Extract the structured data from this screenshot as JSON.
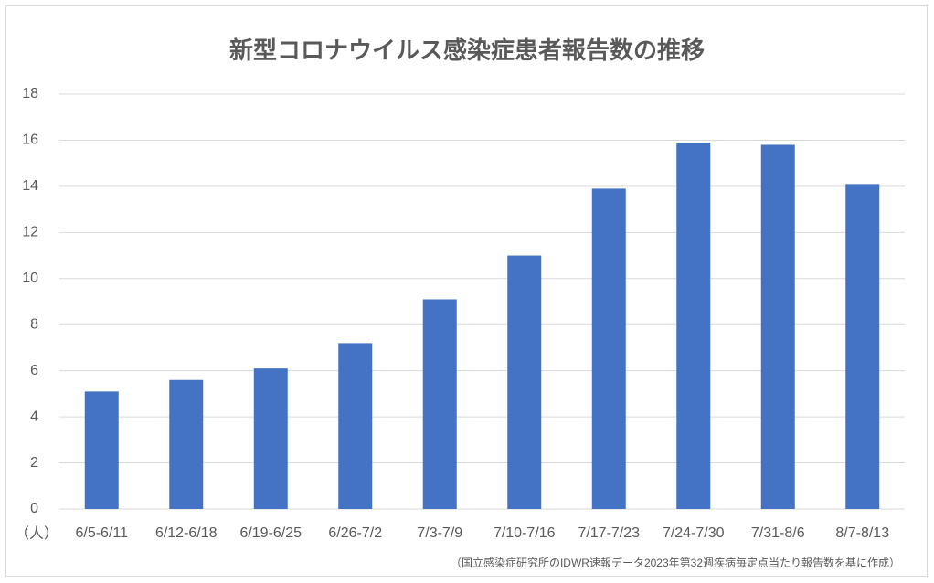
{
  "chart_data": {
    "type": "bar",
    "title": "新型コロナウイルス感染症患者報告数の推移",
    "categories": [
      "6/5-6/11",
      "6/12-6/18",
      "6/19-6/25",
      "6/26-7/2",
      "7/3-7/9",
      "7/10-7/16",
      "7/17-7/23",
      "7/24-7/30",
      "7/31-8/6",
      "8/7-8/13"
    ],
    "values": [
      5.1,
      5.6,
      6.1,
      7.2,
      9.1,
      11.0,
      13.9,
      15.9,
      15.8,
      14.1
    ],
    "color": "#4472c4",
    "ylim": [
      0,
      18
    ],
    "yticks": [
      0,
      2,
      4,
      6,
      8,
      10,
      12,
      14,
      16,
      18
    ],
    "grid": true,
    "y_unit": "（人）",
    "source": "（国立感染症研究所のIDWR速報データ2023年第32週疾病毎定点当たり報告数を基に作成）"
  }
}
